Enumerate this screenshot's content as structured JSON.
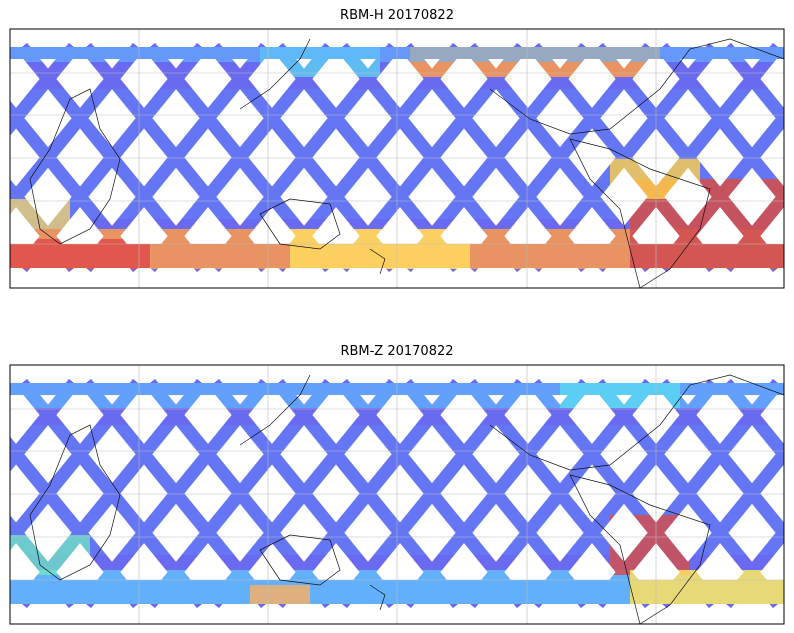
{
  "maps": [
    {
      "title": "RBM-H 20170822"
    },
    {
      "title": "RBM-Z 20170822"
    }
  ]
}
